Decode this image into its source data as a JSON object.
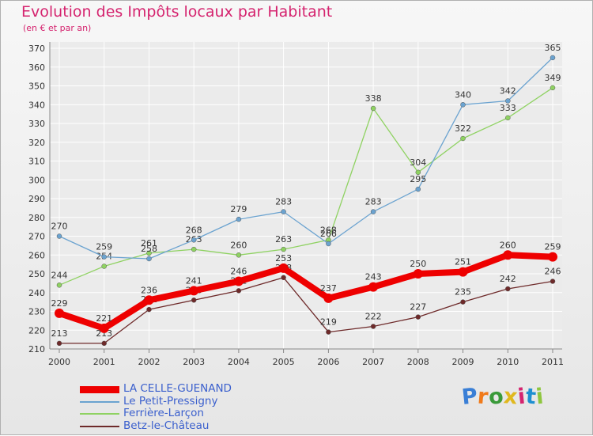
{
  "title": "Evolution des Impôts locaux par Habitant",
  "subtitle": "(en € et par an)",
  "logo": {
    "letters": [
      "P",
      "r",
      "o",
      "x",
      "i",
      "t",
      "i"
    ],
    "colors": [
      "#3a7fd6",
      "#f07a1a",
      "#3a9a3a",
      "#e0b81e",
      "#d5246f",
      "#1e8fd0",
      "#8ec63f"
    ]
  },
  "chart_data": {
    "type": "line",
    "title": "Evolution des Impôts locaux par Habitant",
    "ylabel": "(en € et par an)",
    "xlabel": "",
    "ylim": [
      210,
      370
    ],
    "y_ticks": [
      "210",
      "220",
      "230",
      "240",
      "250",
      "260",
      "270",
      "280",
      "290",
      "300",
      "310",
      "320",
      "330",
      "340",
      "350",
      "360",
      "370"
    ],
    "categories": [
      "2000",
      "2001",
      "2002",
      "2003",
      "2004",
      "2005",
      "2006",
      "2007",
      "2008",
      "2009",
      "2010",
      "2011"
    ],
    "grid": true,
    "legend_position": "bottom-left",
    "series": [
      {
        "name": "Betz-le-Château",
        "color": "#6e2a2a",
        "line_width": "thin",
        "values": [
          213,
          213,
          231,
          236,
          241,
          248,
          219,
          222,
          227,
          235,
          242,
          246
        ]
      },
      {
        "name": "Ferrière-Larçon",
        "color": "#8fd262",
        "line_width": "thin",
        "values": [
          244,
          254,
          261,
          263,
          260,
          263,
          268,
          338,
          304,
          322,
          333,
          349
        ]
      },
      {
        "name": "Le Petit-Pressigny",
        "color": "#6ba3d0",
        "line_width": "thin",
        "values": [
          270,
          259,
          258,
          268,
          279,
          283,
          266,
          283,
          295,
          340,
          342,
          365
        ]
      },
      {
        "name": "LA CELLE-GUENAND",
        "color": "#ee0000",
        "line_width": "thick",
        "values": [
          229,
          221,
          236,
          241,
          246,
          253,
          237,
          243,
          250,
          251,
          260,
          259
        ]
      }
    ],
    "legend_order": [
      "LA CELLE-GUENAND",
      "Le Petit-Pressigny",
      "Ferrière-Larçon",
      "Betz-le-Château"
    ]
  }
}
